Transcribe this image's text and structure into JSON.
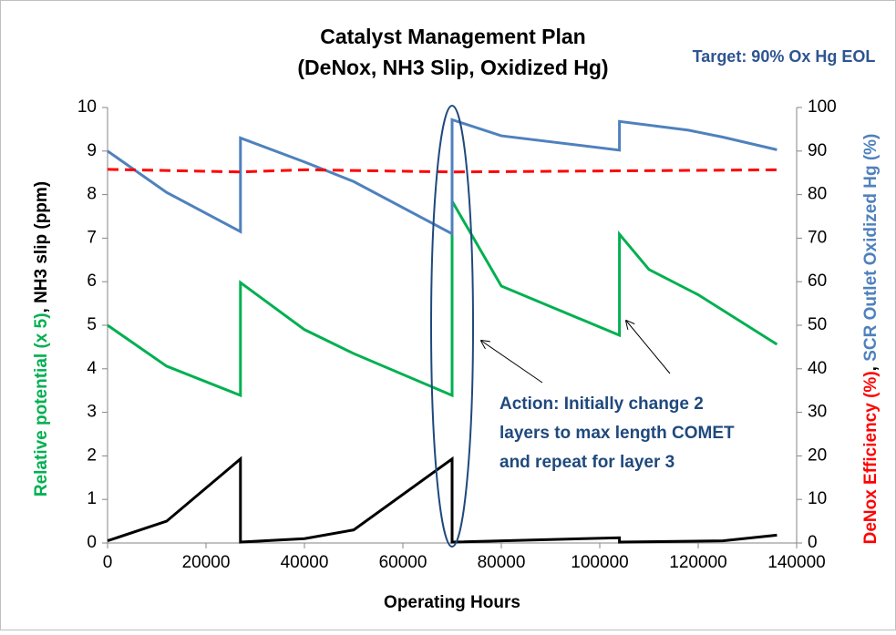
{
  "chart_data": {
    "type": "line",
    "title": [
      "Catalyst Management Plan",
      "(DeNox, NH3 Slip, Oxidized Hg)"
    ],
    "annotations": [
      "Target: 90% Ox Hg EOL",
      "Action: Initially change 2",
      "layers to max length COMET",
      "and repeat for layer 3"
    ],
    "x_label": "Operating Hours",
    "y_label_parts": [
      {
        "text": "Relative potential (x 5)",
        "color": "#00b050"
      },
      {
        "text": ", NH3 slip (ppm)",
        "color": "#000000"
      }
    ],
    "y2_label_parts": [
      {
        "text": "DeNox Efficiency (%)",
        "color": "#ff0000"
      },
      {
        "text": ", ",
        "color": "#000000"
      },
      {
        "text": "SCR Outlet Oxidized Hg (%)",
        "color": "#4f81bd"
      }
    ],
    "xlim": [
      0,
      140000
    ],
    "xticks": [
      0,
      20000,
      40000,
      60000,
      80000,
      100000,
      120000,
      140000
    ],
    "ylim": [
      0,
      10
    ],
    "yticks": [
      0,
      1,
      2,
      3,
      4,
      5,
      6,
      7,
      8,
      9,
      10
    ],
    "y2lim": [
      0,
      100
    ],
    "y2ticks": [
      0,
      10,
      20,
      30,
      40,
      50,
      60,
      70,
      80,
      90,
      100
    ],
    "series": [
      {
        "color": "#00b050",
        "axis": "y",
        "dashed": false,
        "x": [
          0,
          12000,
          27000,
          27000,
          40000,
          50000,
          70000,
          70000,
          80000,
          104000,
          104000,
          110000,
          120000,
          136000
        ],
        "values": [
          5.0,
          4.06,
          3.39,
          5.98,
          4.9,
          4.35,
          3.39,
          7.85,
          5.9,
          4.77,
          7.09,
          6.28,
          5.7,
          4.56
        ]
      },
      {
        "color": "#000000",
        "axis": "y",
        "dashed": false,
        "x": [
          0,
          12000,
          27000,
          27000,
          40000,
          50000,
          70000,
          70000,
          104000,
          104000,
          125000,
          136000
        ],
        "values": [
          0.05,
          0.5,
          1.93,
          0.02,
          0.1,
          0.3,
          1.93,
          0.02,
          0.12,
          0.02,
          0.05,
          0.18
        ]
      },
      {
        "color": "#4f81bd",
        "axis": "y2",
        "dashed": false,
        "x": [
          0,
          12000,
          27000,
          27000,
          40000,
          50000,
          70000,
          70000,
          80000,
          104000,
          104000,
          118000,
          125000,
          136000
        ],
        "values": [
          90,
          80.5,
          71.5,
          93,
          87.5,
          83,
          71,
          97.2,
          93.5,
          90.2,
          96.8,
          94.8,
          93.2,
          90.3
        ]
      },
      {
        "color": "#ff0000",
        "axis": "y2",
        "dashed": true,
        "x": [
          0,
          27000,
          40000,
          70000,
          136000
        ],
        "values": [
          85.8,
          85.2,
          85.7,
          85.2,
          85.7
        ]
      }
    ]
  }
}
